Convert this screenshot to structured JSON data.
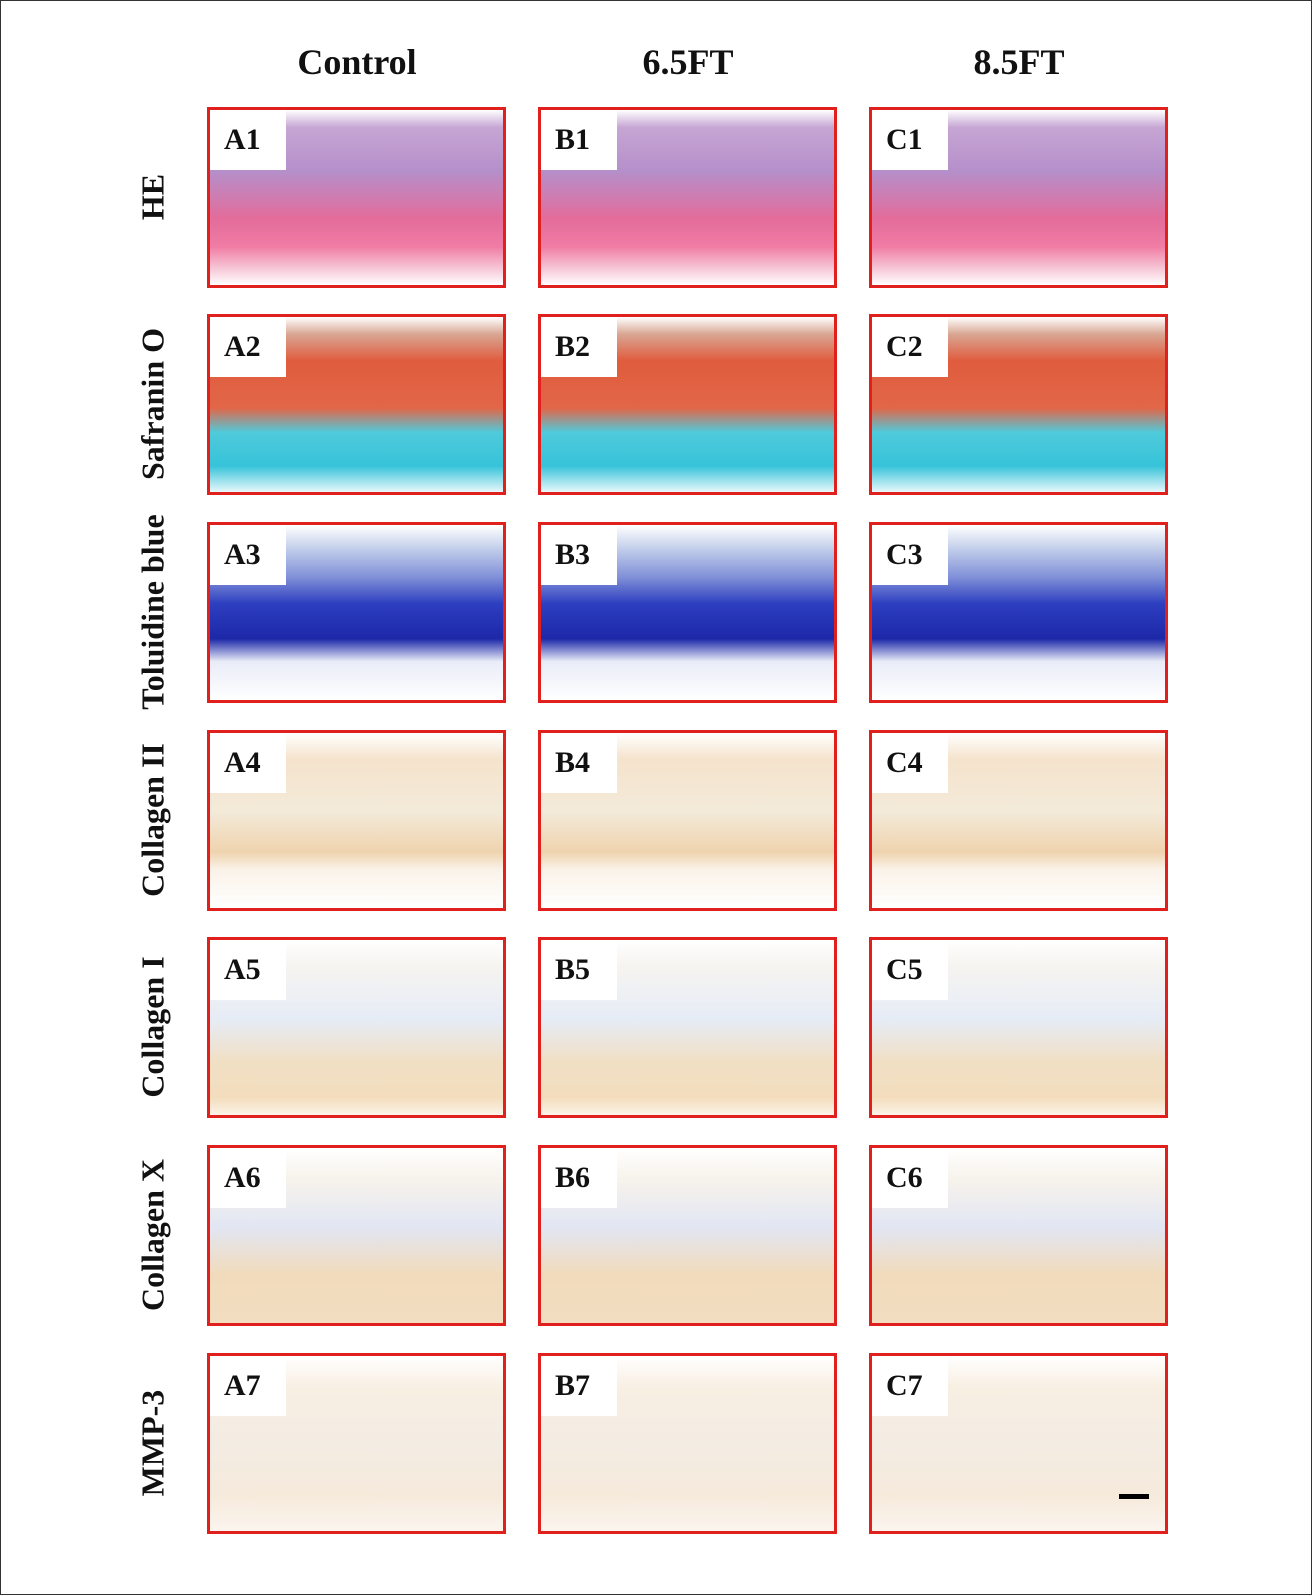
{
  "columns": [
    "Control",
    "6.5FT",
    "8.5FT"
  ],
  "rows": [
    {
      "label": "HE",
      "panels": [
        "A1",
        "B1",
        "C1"
      ]
    },
    {
      "label": "Safranin O",
      "panels": [
        "A2",
        "B2",
        "C2"
      ]
    },
    {
      "label": "Toluidine blue",
      "panels": [
        "A3",
        "B3",
        "C3"
      ]
    },
    {
      "label": "Collagen II",
      "panels": [
        "A4",
        "B4",
        "C4"
      ]
    },
    {
      "label": "Collagen I",
      "panels": [
        "A5",
        "B5",
        "C5"
      ]
    },
    {
      "label": "Collagen X",
      "panels": [
        "A6",
        "B6",
        "C6"
      ]
    },
    {
      "label": "MMP-3",
      "panels": [
        "A7",
        "B7",
        "C7"
      ]
    }
  ]
}
